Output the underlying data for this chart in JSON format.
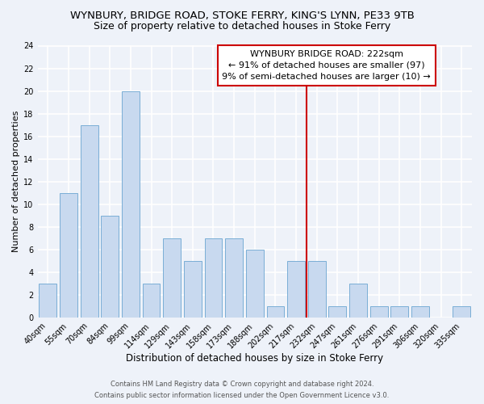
{
  "title_line1": "WYNBURY, BRIDGE ROAD, STOKE FERRY, KING'S LYNN, PE33 9TB",
  "title_line2": "Size of property relative to detached houses in Stoke Ferry",
  "xlabel": "Distribution of detached houses by size in Stoke Ferry",
  "ylabel": "Number of detached properties",
  "bar_labels": [
    "40sqm",
    "55sqm",
    "70sqm",
    "84sqm",
    "99sqm",
    "114sqm",
    "129sqm",
    "143sqm",
    "158sqm",
    "173sqm",
    "188sqm",
    "202sqm",
    "217sqm",
    "232sqm",
    "247sqm",
    "261sqm",
    "276sqm",
    "291sqm",
    "306sqm",
    "320sqm",
    "335sqm"
  ],
  "bar_values": [
    3,
    11,
    17,
    9,
    20,
    3,
    7,
    5,
    7,
    7,
    6,
    1,
    5,
    5,
    1,
    3,
    1,
    1,
    1,
    0,
    1
  ],
  "bar_color": "#c8d9ef",
  "bar_edge_color": "#7aaed6",
  "ylim": [
    0,
    24
  ],
  "yticks": [
    0,
    2,
    4,
    6,
    8,
    10,
    12,
    14,
    16,
    18,
    20,
    22,
    24
  ],
  "vline_color": "#cc0000",
  "vline_index": 12,
  "annotation_title": "WYNBURY BRIDGE ROAD: 222sqm",
  "annotation_line2": "← 91% of detached houses are smaller (97)",
  "annotation_line3": "9% of semi-detached houses are larger (10) →",
  "footer_line1": "Contains HM Land Registry data © Crown copyright and database right 2024.",
  "footer_line2": "Contains public sector information licensed under the Open Government Licence v3.0.",
  "background_color": "#eef2f9",
  "grid_color": "#ffffff",
  "title_fontsize": 9.5,
  "subtitle_fontsize": 9,
  "xlabel_fontsize": 8.5,
  "ylabel_fontsize": 8,
  "tick_fontsize": 7,
  "annotation_fontsize": 8,
  "footer_fontsize": 6
}
